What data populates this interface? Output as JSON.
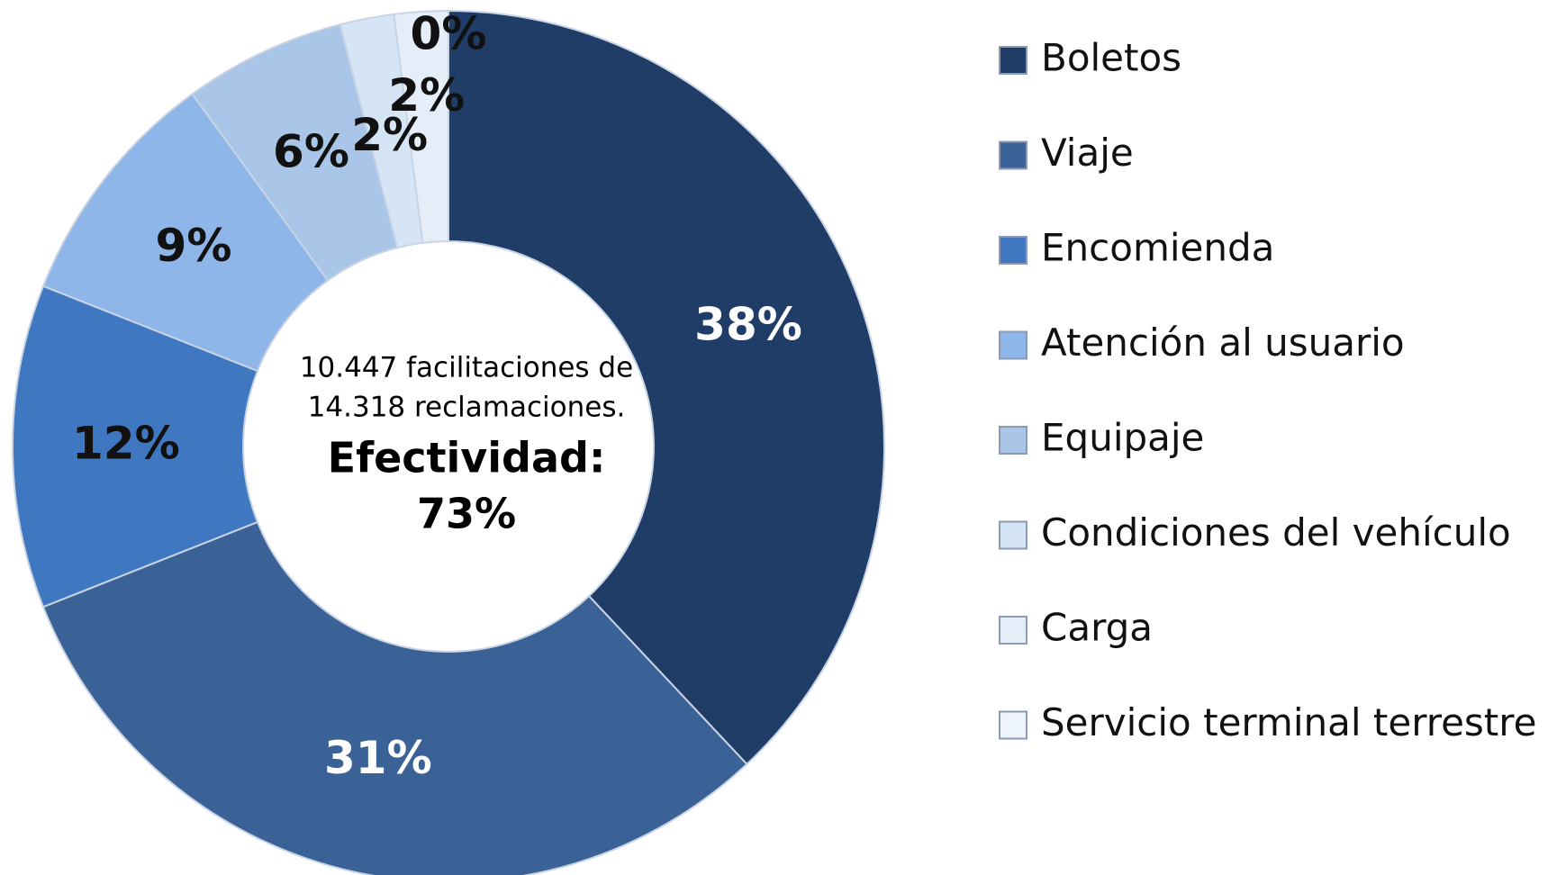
{
  "chart_data": {
    "type": "donut",
    "categories": [
      "Boletos",
      "Viaje",
      "Encomienda",
      "Atención al usuario",
      "Equipaje",
      "Condiciones del vehículo",
      "Carga",
      "Servicio terminal terrestre"
    ],
    "values": [
      38,
      31,
      12,
      9,
      6,
      2,
      2,
      0
    ],
    "value_labels": [
      "38%",
      "31%",
      "12%",
      "9%",
      "6%",
      "2%",
      "2%",
      "0%"
    ],
    "colors": [
      "#1f3d66",
      "#3a6296",
      "#3f78c0",
      "#8fb6e8",
      "#a9c5e7",
      "#d6e5f6",
      "#e4edf8",
      "#eef4fb"
    ],
    "annotations": [
      "10.447 facilitaciones de",
      "14.318 reclamaciones.",
      "Efectividad:",
      "73%"
    ],
    "legend": "right"
  }
}
